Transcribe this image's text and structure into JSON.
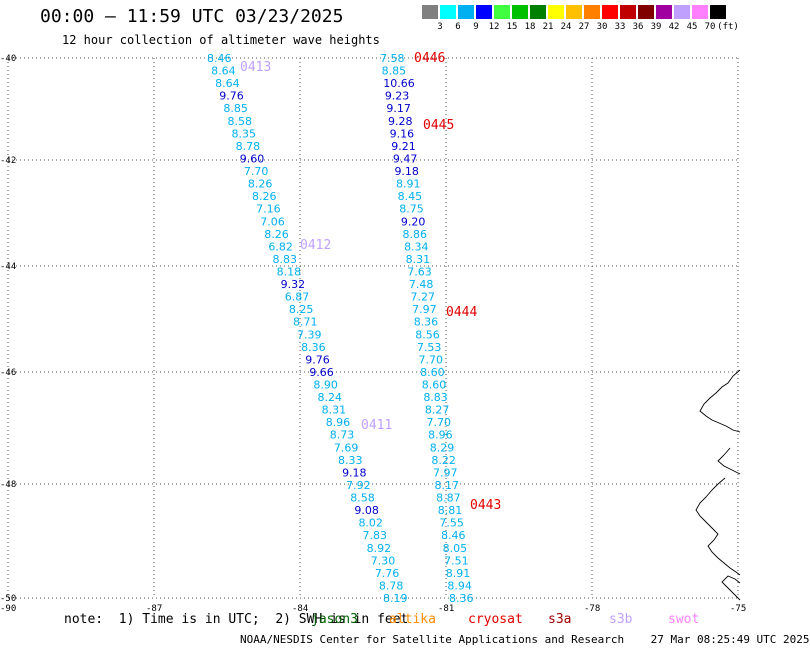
{
  "header": {
    "title": "00:00 – 11:59 UTC 03/23/2025",
    "subtitle": "12 hour collection of altimeter wave heights"
  },
  "scale": {
    "labels": [
      "3",
      "6",
      "9",
      "12",
      "15",
      "18",
      "21",
      "24",
      "27",
      "30",
      "33",
      "36",
      "39",
      "42",
      "45",
      "70",
      "(ft)"
    ],
    "colors": [
      "#808080",
      "#00ffff",
      "#00b0f0",
      "#0000ff",
      "#40ff40",
      "#00c000",
      "#008000",
      "#ffff00",
      "#ffc000",
      "#ff8000",
      "#ff0000",
      "#c00000",
      "#800000",
      "#a000a0",
      "#c0a0ff",
      "#ff80ff",
      "#000000"
    ]
  },
  "axes": {
    "lat_labels": [
      "-40",
      "-42",
      "-44",
      "-46",
      "-48",
      "-50"
    ],
    "lon_labels": [
      "-90",
      "-87",
      "-84",
      "-81",
      "-78",
      "-75"
    ]
  },
  "tracks": [
    {
      "id": "0413",
      "label_color": "#c0a0ff",
      "points": [
        {
          "v": "8.46",
          "c": "#00b0f0"
        },
        {
          "v": "8.64",
          "c": "#00b0f0"
        },
        {
          "v": "8.64",
          "c": "#00b0f0"
        },
        {
          "v": "9.76",
          "c": "#0000cc"
        },
        {
          "v": "8.85",
          "c": "#00b0f0"
        },
        {
          "v": "8.58",
          "c": "#00b0f0"
        },
        {
          "v": "8.35",
          "c": "#00b0f0"
        },
        {
          "v": "8.78",
          "c": "#00b0f0"
        },
        {
          "v": "9.60",
          "c": "#0000cc"
        },
        {
          "v": "7.70",
          "c": "#00b0f0"
        },
        {
          "v": "8.26",
          "c": "#00b0f0"
        },
        {
          "v": "8.26",
          "c": "#00b0f0"
        },
        {
          "v": "7.16",
          "c": "#00b0f0"
        },
        {
          "v": "7.06",
          "c": "#00b0f0"
        },
        {
          "v": "8.26",
          "c": "#00b0f0"
        },
        {
          "v": "6.82",
          "c": "#00b0f0"
        },
        {
          "v": "8.83",
          "c": "#00b0f0"
        },
        {
          "v": "8.18",
          "c": "#00b0f0"
        },
        {
          "v": "9.32",
          "c": "#0000cc"
        },
        {
          "v": "6.87",
          "c": "#00b0f0"
        },
        {
          "v": "8.25",
          "c": "#00b0f0"
        },
        {
          "v": "8.71",
          "c": "#00b0f0"
        },
        {
          "v": "7.39",
          "c": "#00b0f0"
        },
        {
          "v": "8.36",
          "c": "#00b0f0"
        },
        {
          "v": "9.76",
          "c": "#0000cc"
        },
        {
          "v": "9.66",
          "c": "#0000cc"
        },
        {
          "v": "8.90",
          "c": "#00b0f0"
        },
        {
          "v": "8.24",
          "c": "#00b0f0"
        },
        {
          "v": "8.31",
          "c": "#00b0f0"
        },
        {
          "v": "8.96",
          "c": "#00b0f0"
        },
        {
          "v": "8.73",
          "c": "#00b0f0"
        },
        {
          "v": "7.69",
          "c": "#00b0f0"
        },
        {
          "v": "8.33",
          "c": "#00b0f0"
        },
        {
          "v": "9.18",
          "c": "#0000cc"
        },
        {
          "v": "7.92",
          "c": "#00b0f0"
        },
        {
          "v": "8.58",
          "c": "#00b0f0"
        },
        {
          "v": "9.08",
          "c": "#0000cc"
        },
        {
          "v": "8.02",
          "c": "#00b0f0"
        },
        {
          "v": "7.83",
          "c": "#00b0f0"
        },
        {
          "v": "8.92",
          "c": "#00b0f0"
        },
        {
          "v": "7.30",
          "c": "#00b0f0"
        },
        {
          "v": "7.76",
          "c": "#00b0f0"
        },
        {
          "v": "8.78",
          "c": "#00b0f0"
        },
        {
          "v": "8.19",
          "c": "#00b0f0"
        }
      ]
    },
    {
      "id": "0446",
      "label_color": "#e00000",
      "points": [
        {
          "v": "7.58",
          "c": "#00b0f0"
        },
        {
          "v": "8.85",
          "c": "#00b0f0"
        },
        {
          "v": "10.66",
          "c": "#0000cc"
        },
        {
          "v": "9.23",
          "c": "#0000cc"
        },
        {
          "v": "9.17",
          "c": "#0000cc"
        },
        {
          "v": "9.28",
          "c": "#0000cc"
        },
        {
          "v": "9.16",
          "c": "#0000cc"
        },
        {
          "v": "9.21",
          "c": "#0000cc"
        },
        {
          "v": "9.47",
          "c": "#0000cc"
        },
        {
          "v": "9.18",
          "c": "#0000cc"
        },
        {
          "v": "8.91",
          "c": "#00b0f0"
        },
        {
          "v": "8.45",
          "c": "#00b0f0"
        },
        {
          "v": "8.75",
          "c": "#00b0f0"
        },
        {
          "v": "9.20",
          "c": "#0000cc"
        },
        {
          "v": "8.86",
          "c": "#00b0f0"
        },
        {
          "v": "8.34",
          "c": "#00b0f0"
        },
        {
          "v": "8.31",
          "c": "#00b0f0"
        },
        {
          "v": "7.63",
          "c": "#00b0f0"
        },
        {
          "v": "7.48",
          "c": "#00b0f0"
        },
        {
          "v": "7.27",
          "c": "#00b0f0"
        },
        {
          "v": "7.97",
          "c": "#00b0f0"
        },
        {
          "v": "8.36",
          "c": "#00b0f0"
        },
        {
          "v": "8.56",
          "c": "#00b0f0"
        },
        {
          "v": "7.53",
          "c": "#00b0f0"
        },
        {
          "v": "7.70",
          "c": "#00b0f0"
        },
        {
          "v": "8.60",
          "c": "#00b0f0"
        },
        {
          "v": "8.60",
          "c": "#00b0f0"
        },
        {
          "v": "8.83",
          "c": "#00b0f0"
        },
        {
          "v": "8.27",
          "c": "#00b0f0"
        },
        {
          "v": "7.70",
          "c": "#00b0f0"
        },
        {
          "v": "8.96",
          "c": "#00b0f0"
        },
        {
          "v": "8.29",
          "c": "#00b0f0"
        },
        {
          "v": "8.22",
          "c": "#00b0f0"
        },
        {
          "v": "7.97",
          "c": "#00b0f0"
        },
        {
          "v": "8.17",
          "c": "#00b0f0"
        },
        {
          "v": "8.87",
          "c": "#00b0f0"
        },
        {
          "v": "8.81",
          "c": "#00b0f0"
        },
        {
          "v": "7.55",
          "c": "#00b0f0"
        },
        {
          "v": "8.46",
          "c": "#00b0f0"
        },
        {
          "v": "8.05",
          "c": "#00b0f0"
        },
        {
          "v": "7.51",
          "c": "#00b0f0"
        },
        {
          "v": "8.91",
          "c": "#00b0f0"
        },
        {
          "v": "8.94",
          "c": "#00b0f0"
        },
        {
          "v": "8.36",
          "c": "#00b0f0"
        }
      ]
    }
  ],
  "pass_labels": [
    {
      "text": "0413",
      "color": "#c0a0ff"
    },
    {
      "text": "0412",
      "color": "#c0a0ff"
    },
    {
      "text": "0411",
      "color": "#c0a0ff"
    },
    {
      "text": "0446",
      "color": "#e00000"
    },
    {
      "text": "0445",
      "color": "#e00000"
    },
    {
      "text": "0444",
      "color": "#e00000"
    },
    {
      "text": "0443",
      "color": "#e00000"
    }
  ],
  "note": "note:  1) Time is in UTC;  2) SWH is in feet",
  "legend": [
    {
      "text": "jason3",
      "color": "#006000"
    },
    {
      "text": "altika",
      "color": "#ff8c00"
    },
    {
      "text": "cryosat",
      "color": "#e00000"
    },
    {
      "text": "s3a",
      "color": "#a00000"
    },
    {
      "text": "s3b",
      "color": "#c0a0ff"
    },
    {
      "text": "swot",
      "color": "#ff80ff"
    }
  ],
  "footer": "NOAA/NESDIS Center for Satellite Applications and Research    27 Mar 08:25:49 UTC 2025"
}
